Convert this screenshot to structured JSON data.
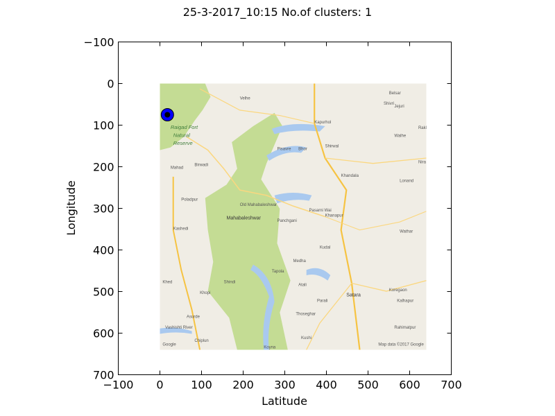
{
  "chart_data": {
    "type": "scatter",
    "title": "25-3-2017_10:15 No.of clusters: 1",
    "xlabel": "Latitude",
    "ylabel": "Longitude",
    "xlim": [
      -100,
      700
    ],
    "ylim": [
      700,
      -100
    ],
    "y_inverted": true,
    "xticks": [
      -100,
      0,
      100,
      200,
      300,
      400,
      500,
      600,
      700
    ],
    "yticks": [
      -100,
      0,
      100,
      200,
      300,
      400,
      500,
      600,
      700
    ],
    "xtick_labels": [
      "−100",
      "0",
      "100",
      "200",
      "300",
      "400",
      "500",
      "600",
      "700"
    ],
    "ytick_labels": [
      "−100",
      "0",
      "100",
      "200",
      "300",
      "400",
      "500",
      "600",
      "700"
    ],
    "grid": false,
    "background_image": {
      "extent_x": [
        0,
        640
      ],
      "extent_y": [
        0,
        640
      ],
      "labels": [
        "Velhe",
        "Raigad Fort",
        "Natural",
        "Reserve",
        "Kapurhol",
        "Belsar",
        "Shivri",
        "Jejuri",
        "Rakh",
        "Walhe",
        "Nira",
        "Mahad",
        "Birwadi",
        "Pisavre",
        "Bhor",
        "Shirwal",
        "Khandala",
        "Lonand",
        "Poladpur",
        "Old Mahabaleshwar",
        "Mahabaleshwar",
        "Panchgani",
        "Pasarni Wai",
        "Khanapur",
        "Kashedi",
        "Wathar",
        "Kudal",
        "Medha",
        "Tapola",
        "Shindi",
        "Atali",
        "Khed",
        "Khopi",
        "Koregaon",
        "Satara",
        "Parali",
        "Asurde",
        "Thoseghar",
        "Kalhapur",
        "Rahimatpur",
        "Chiplun",
        "Kushi",
        "Koyna",
        "Vashishti River",
        "Google",
        "Map data ©2017 Google"
      ]
    },
    "series": [
      {
        "points": [
          {
            "x": 18,
            "y": 75
          }
        ],
        "marker": "o",
        "outer_color": "#0000ff",
        "inner_color": "#000000"
      }
    ]
  },
  "colors": {
    "map_land": "#f0ede5",
    "map_park": "#c4dc94",
    "map_park_dark": "#aecf80",
    "map_water": "#a9c9ef",
    "map_road": "#fbd77f",
    "map_highway": "#f6c342",
    "marker": "#0000ff"
  }
}
